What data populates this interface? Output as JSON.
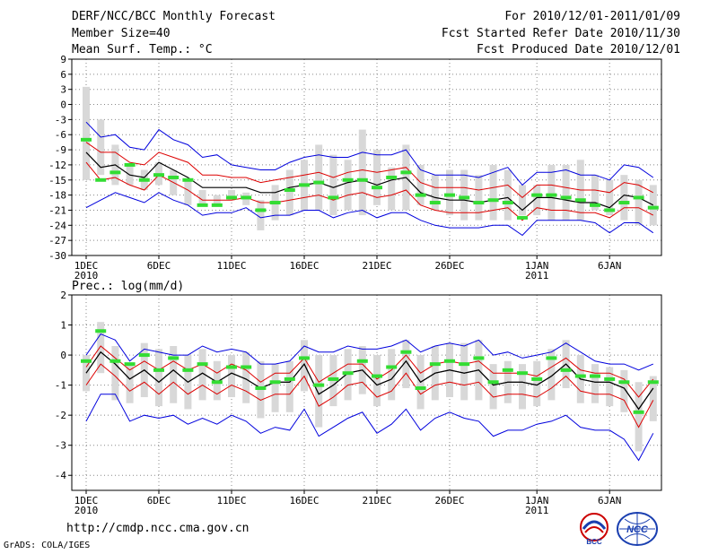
{
  "header": {
    "left": [
      "DERF/NCC/BCC Monthly Forecast",
      "Member Size=40",
      "Mean Surf. Temp.: °C"
    ],
    "right": [
      "For 2010/12/01-2011/01/09",
      "Fcst Started Refer Date 2010/11/30",
      "Fcst Produced Date 2010/12/01"
    ]
  },
  "footer": {
    "url": "http://cmdp.ncc.cma.gov.cn",
    "credit": "GrADS: COLA/IGES",
    "logo_left_text": "BCC",
    "logo_right_text": "NCC"
  },
  "colors": {
    "envelope_outer": "#0000dd",
    "envelope_inner": "#dd0000",
    "mean": "#000000",
    "box": "#d8d8d8",
    "marker": "#33dd33",
    "grid": "#888888"
  },
  "chart_data": [
    {
      "type": "line",
      "title": "Mean Surf. Temp.: °C",
      "ylabel": "°C",
      "ylim": [
        -30,
        9
      ],
      "yticks": [
        9,
        6,
        3,
        0,
        -3,
        -6,
        -9,
        -12,
        -15,
        -18,
        -21,
        -24,
        -27,
        -30
      ],
      "x": [
        1,
        2,
        3,
        4,
        5,
        6,
        7,
        8,
        9,
        10,
        11,
        12,
        13,
        14,
        15,
        16,
        17,
        18,
        19,
        20,
        21,
        22,
        23,
        24,
        25,
        26,
        27,
        28,
        29,
        30,
        31,
        32,
        33,
        34,
        35,
        36,
        37,
        38,
        39,
        40
      ],
      "xticks": [
        {
          "x": 1,
          "label": "1DEC",
          "sub": "2010"
        },
        {
          "x": 6,
          "label": "6DEC"
        },
        {
          "x": 11,
          "label": "11DEC"
        },
        {
          "x": 16,
          "label": "16DEC"
        },
        {
          "x": 21,
          "label": "21DEC"
        },
        {
          "x": 26,
          "label": "26DEC"
        },
        {
          "x": 32,
          "label": "1JAN",
          "sub": "2011"
        },
        {
          "x": 37,
          "label": "6JAN"
        }
      ],
      "series": [
        {
          "name": "upper",
          "values": [
            -3.5,
            -6.5,
            -6,
            -8.5,
            -9,
            -5,
            -7,
            -8,
            -10.5,
            -10,
            -12,
            -12.5,
            -13,
            -13,
            -11.5,
            -10.5,
            -10,
            -10.5,
            -10.5,
            -9.5,
            -10,
            -10,
            -9,
            -13,
            -14,
            -14,
            -14,
            -14.5,
            -13.5,
            -12.5,
            -16,
            -13.5,
            -13.5,
            -13,
            -14,
            -14,
            -15,
            -12,
            -12.5,
            -14.5
          ]
        },
        {
          "name": "upper_inner",
          "values": [
            -7.5,
            -9.5,
            -9.5,
            -11.5,
            -12,
            -9.5,
            -10.5,
            -11.5,
            -14,
            -14,
            -14.5,
            -14.5,
            -15.5,
            -15,
            -14.5,
            -14,
            -13.5,
            -14.5,
            -13.5,
            -13,
            -13.5,
            -13,
            -12.5,
            -15.5,
            -16.5,
            -16.5,
            -16.5,
            -17,
            -16.5,
            -16,
            -18.5,
            -16,
            -16,
            -16.5,
            -17,
            -17,
            -17.5,
            -15.5,
            -16,
            -17.5
          ]
        },
        {
          "name": "mean",
          "values": [
            -9.5,
            -12.5,
            -12,
            -14,
            -14.5,
            -11.5,
            -13,
            -14.5,
            -16.5,
            -16.5,
            -16.5,
            -16.5,
            -17.5,
            -17.5,
            -16.5,
            -16,
            -15.5,
            -16.5,
            -15.5,
            -15,
            -16,
            -15,
            -14.5,
            -17.5,
            -18.5,
            -19,
            -19,
            -19.5,
            -19,
            -18.5,
            -21,
            -18.5,
            -18.5,
            -19,
            -19.5,
            -19.5,
            -20.5,
            -18,
            -18.5,
            -20
          ]
        },
        {
          "name": "lower_inner",
          "values": [
            -11.5,
            -15,
            -14.5,
            -16,
            -17,
            -14,
            -15.5,
            -17,
            -19,
            -19,
            -19,
            -18.5,
            -19.5,
            -19.5,
            -19,
            -18.5,
            -18,
            -19,
            -18,
            -17.5,
            -18.5,
            -18,
            -17,
            -20,
            -21,
            -21.5,
            -21.5,
            -21.5,
            -21,
            -20.5,
            -23,
            -20.5,
            -21,
            -21,
            -21.5,
            -21.5,
            -22.5,
            -20.5,
            -20.5,
            -22
          ]
        },
        {
          "name": "lower",
          "values": [
            -20.5,
            -19,
            -17.5,
            -18.5,
            -19.5,
            -17.5,
            -19,
            -20,
            -22,
            -21.5,
            -21.5,
            -20.5,
            -22.5,
            -22,
            -22,
            -21,
            -21,
            -22.5,
            -21.5,
            -21,
            -22.5,
            -21.5,
            -21.5,
            -23,
            -24,
            -24.5,
            -24.5,
            -24.5,
            -24,
            -24,
            -26,
            -23,
            -23,
            -23,
            -23,
            -23.5,
            -25.5,
            -23.5,
            -23.5,
            -25.5
          ]
        }
      ],
      "boxes": [
        [
          -15,
          3.5
        ],
        [
          -14,
          -3
        ],
        [
          -16,
          -8
        ],
        [
          -16,
          -12
        ],
        [
          -17,
          -13
        ],
        [
          -16,
          -11.5
        ],
        [
          -18,
          -13
        ],
        [
          -20,
          -15
        ],
        [
          -20,
          -17
        ],
        [
          -20,
          -18
        ],
        [
          -19,
          -17
        ],
        [
          -20,
          -17.5
        ],
        [
          -25,
          -19
        ],
        [
          -23,
          -16
        ],
        [
          -22,
          -13
        ],
        [
          -21,
          -11
        ],
        [
          -21,
          -8
        ],
        [
          -22,
          -10
        ],
        [
          -21,
          -11
        ],
        [
          -22,
          -5
        ],
        [
          -20,
          -9
        ],
        [
          -21,
          -12.5
        ],
        [
          -21,
          -8
        ],
        [
          -20,
          -12
        ],
        [
          -21,
          -14
        ],
        [
          -22,
          -13
        ],
        [
          -23,
          -13
        ],
        [
          -23,
          -14
        ],
        [
          -23,
          -12
        ],
        [
          -23,
          -13
        ],
        [
          -22,
          -16
        ],
        [
          -22,
          -16
        ],
        [
          -23,
          -12
        ],
        [
          -23,
          -12
        ],
        [
          -23,
          -11
        ],
        [
          -21,
          -14
        ],
        [
          -22,
          -15
        ],
        [
          -23,
          -14
        ],
        [
          -24,
          -15
        ],
        [
          -24,
          -16
        ]
      ],
      "markers": [
        -7,
        -15,
        -13.5,
        -12,
        -15,
        -14,
        -14.5,
        -15,
        -20,
        -20,
        -18.5,
        -18.5,
        -21,
        -19.5,
        -17,
        -16,
        -15.5,
        -18.5,
        -15,
        -15,
        -16.5,
        -14.5,
        -13.5,
        -18,
        -19.5,
        -18,
        -18.5,
        -19.5,
        -19,
        -19.5,
        -22.5,
        -18,
        -18,
        -18.5,
        -19,
        -20,
        -21,
        -19.5,
        -18.5,
        -20.5
      ]
    },
    {
      "type": "line",
      "title": "Prec.: log(mm/d)",
      "ylabel": "log(mm/d)",
      "ylim": [
        -4.5,
        2
      ],
      "yticks": [
        2,
        1,
        0,
        -1,
        -2,
        -3,
        -4
      ],
      "x": [
        1,
        2,
        3,
        4,
        5,
        6,
        7,
        8,
        9,
        10,
        11,
        12,
        13,
        14,
        15,
        16,
        17,
        18,
        19,
        20,
        21,
        22,
        23,
        24,
        25,
        26,
        27,
        28,
        29,
        30,
        31,
        32,
        33,
        34,
        35,
        36,
        37,
        38,
        39,
        40
      ],
      "xticks": [
        {
          "x": 1,
          "label": "1DEC",
          "sub": "2010"
        },
        {
          "x": 6,
          "label": "6DEC"
        },
        {
          "x": 11,
          "label": "11DEC"
        },
        {
          "x": 16,
          "label": "16DEC"
        },
        {
          "x": 21,
          "label": "21DEC"
        },
        {
          "x": 26,
          "label": "26DEC"
        },
        {
          "x": 32,
          "label": "1JAN",
          "sub": "2011"
        },
        {
          "x": 37,
          "label": "6JAN"
        }
      ],
      "series": [
        {
          "name": "upper",
          "values": [
            0.0,
            0.7,
            0.5,
            -0.2,
            0.2,
            0.1,
            0.0,
            0.0,
            0.3,
            0.1,
            0.2,
            0.1,
            -0.3,
            -0.3,
            -0.2,
            0.3,
            0.1,
            0.1,
            0.3,
            0.2,
            0.2,
            0.3,
            0.5,
            0.1,
            0.3,
            0.4,
            0.3,
            0.5,
            0.0,
            0.1,
            -0.1,
            0.0,
            0.1,
            0.4,
            0.1,
            -0.2,
            -0.3,
            -0.3,
            -0.5,
            -0.3
          ]
        },
        {
          "name": "upper_inner",
          "values": [
            -0.4,
            0.3,
            -0.1,
            -0.5,
            -0.2,
            -0.5,
            -0.2,
            -0.5,
            -0.3,
            -0.6,
            -0.3,
            -0.5,
            -0.9,
            -0.6,
            -0.6,
            -0.1,
            -0.9,
            -0.6,
            -0.3,
            -0.3,
            -0.8,
            -0.5,
            0.0,
            -0.6,
            -0.3,
            -0.2,
            -0.3,
            -0.2,
            -0.6,
            -0.6,
            -0.6,
            -0.7,
            -0.4,
            -0.1,
            -0.5,
            -0.6,
            -0.6,
            -0.8,
            -1.4,
            -0.8
          ]
        },
        {
          "name": "mean",
          "values": [
            -0.6,
            0.1,
            -0.3,
            -0.8,
            -0.5,
            -0.9,
            -0.5,
            -0.9,
            -0.6,
            -0.9,
            -0.6,
            -0.8,
            -1.1,
            -0.9,
            -0.9,
            -0.3,
            -1.3,
            -1.0,
            -0.6,
            -0.5,
            -1.0,
            -0.8,
            -0.2,
            -0.9,
            -0.6,
            -0.5,
            -0.6,
            -0.5,
            -1.0,
            -0.9,
            -0.9,
            -1.0,
            -0.7,
            -0.3,
            -0.8,
            -0.9,
            -0.9,
            -1.1,
            -1.8,
            -1.1
          ]
        },
        {
          "name": "lower_inner",
          "values": [
            -1.0,
            -0.3,
            -0.7,
            -1.2,
            -0.9,
            -1.3,
            -0.9,
            -1.3,
            -1.0,
            -1.3,
            -1.0,
            -1.2,
            -1.5,
            -1.3,
            -1.3,
            -0.7,
            -1.7,
            -1.4,
            -1.0,
            -0.9,
            -1.4,
            -1.2,
            -0.6,
            -1.3,
            -1.0,
            -0.9,
            -1.0,
            -0.9,
            -1.4,
            -1.3,
            -1.3,
            -1.4,
            -1.1,
            -0.7,
            -1.2,
            -1.3,
            -1.3,
            -1.5,
            -2.4,
            -1.5
          ]
        },
        {
          "name": "lower",
          "values": [
            -2.2,
            -1.3,
            -1.3,
            -2.2,
            -2.0,
            -2.1,
            -2.0,
            -2.3,
            -2.1,
            -2.3,
            -2.0,
            -2.2,
            -2.6,
            -2.4,
            -2.5,
            -1.8,
            -2.7,
            -2.4,
            -2.1,
            -1.9,
            -2.6,
            -2.3,
            -1.8,
            -2.5,
            -2.1,
            -1.9,
            -2.1,
            -2.2,
            -2.7,
            -2.5,
            -2.5,
            -2.3,
            -2.2,
            -2.0,
            -2.4,
            -2.5,
            -2.5,
            -2.8,
            -3.5,
            -2.6
          ]
        },
        {
          "name": "control",
          "values": [
            -0.6,
            0.1,
            -0.3,
            -0.8,
            -0.5,
            -0.9,
            -0.5,
            -0.9,
            -0.6,
            -0.9,
            -0.6,
            -0.8,
            -1.1,
            -0.9,
            -0.9,
            -0.3,
            -1.3,
            -1.0,
            -0.6,
            -0.5,
            -1.0,
            -0.8,
            -0.2,
            -0.9,
            -0.6,
            -0.5,
            -0.6,
            -0.5,
            -1.0,
            -0.9,
            -0.9,
            -1.0,
            -0.7,
            -0.3,
            -0.8,
            -0.9,
            -0.9,
            -1.1,
            -1.8,
            -1.1
          ]
        }
      ],
      "boxes": [
        [
          -1.2,
          0.0
        ],
        [
          -0.6,
          1.1
        ],
        [
          -1.5,
          0.3
        ],
        [
          -1.6,
          -0.3
        ],
        [
          -1.4,
          0.4
        ],
        [
          -1.7,
          0.2
        ],
        [
          -1.6,
          0.3
        ],
        [
          -1.8,
          0.0
        ],
        [
          -1.5,
          0.2
        ],
        [
          -1.5,
          -0.2
        ],
        [
          -1.4,
          0.0
        ],
        [
          -1.6,
          0.1
        ],
        [
          -2.1,
          -0.2
        ],
        [
          -1.9,
          -0.3
        ],
        [
          -1.9,
          -0.2
        ],
        [
          -1.2,
          0.5
        ],
        [
          -2.4,
          0.0
        ],
        [
          -1.7,
          0.0
        ],
        [
          -1.5,
          0.2
        ],
        [
          -1.3,
          0.3
        ],
        [
          -1.7,
          0.0
        ],
        [
          -1.5,
          0.2
        ],
        [
          -1.1,
          0.5
        ],
        [
          -1.8,
          0.0
        ],
        [
          -1.5,
          0.3
        ],
        [
          -1.4,
          0.4
        ],
        [
          -1.5,
          0.4
        ],
        [
          -1.5,
          0.5
        ],
        [
          -1.8,
          -0.3
        ],
        [
          -1.6,
          -0.2
        ],
        [
          -1.8,
          -0.3
        ],
        [
          -1.7,
          -0.2
        ],
        [
          -1.5,
          0.2
        ],
        [
          -1.1,
          0.5
        ],
        [
          -1.6,
          0.0
        ],
        [
          -1.6,
          -0.3
        ],
        [
          -1.7,
          -0.4
        ],
        [
          -1.9,
          -0.5
        ],
        [
          -3.2,
          -0.9
        ],
        [
          -2.2,
          -0.7
        ]
      ],
      "markers": [
        -0.2,
        0.8,
        -0.2,
        -0.3,
        0.0,
        -0.5,
        -0.1,
        -0.5,
        -0.3,
        -0.9,
        -0.4,
        -0.4,
        -1.1,
        -0.9,
        -0.8,
        -0.1,
        -1.0,
        -0.8,
        -0.6,
        -0.2,
        -0.7,
        -0.4,
        0.1,
        -1.1,
        -0.3,
        -0.2,
        -0.3,
        -0.1,
        -0.9,
        -0.5,
        -0.6,
        -0.8,
        -0.1,
        -0.5,
        -0.7,
        -0.7,
        -0.8,
        -0.9,
        -1.9,
        -0.9
      ]
    }
  ]
}
